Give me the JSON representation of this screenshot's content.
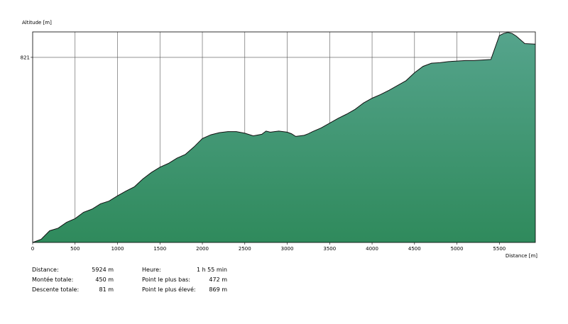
{
  "chart_data": {
    "type": "area",
    "ylabel": "Altitude [m]",
    "xlabel": "Distance [m]",
    "xlim": [
      0,
      5924
    ],
    "ylim": [
      472,
      869
    ],
    "x_ticks": [
      0,
      500,
      1000,
      1500,
      2000,
      2500,
      3000,
      3500,
      4000,
      4500,
      5000,
      5500
    ],
    "y_ticks": [
      821
    ],
    "grid": true,
    "colors": {
      "fill_top": "#55a48c",
      "fill_bottom": "#2f8a5c",
      "line": "#111111",
      "grid": "#555555"
    },
    "x": [
      0,
      100,
      200,
      300,
      400,
      500,
      600,
      700,
      800,
      900,
      1000,
      1100,
      1200,
      1300,
      1400,
      1500,
      1600,
      1700,
      1800,
      1900,
      2000,
      2100,
      2200,
      2300,
      2400,
      2500,
      2600,
      2700,
      2750,
      2800,
      2850,
      2900,
      3000,
      3050,
      3100,
      3200,
      3250,
      3300,
      3400,
      3500,
      3600,
      3700,
      3800,
      3900,
      4000,
      4100,
      4200,
      4300,
      4400,
      4500,
      4600,
      4700,
      4800,
      4900,
      5000,
      5100,
      5200,
      5300,
      5400,
      5500,
      5550,
      5600,
      5650,
      5700,
      5800,
      5924
    ],
    "values": [
      472,
      478,
      494,
      499,
      510,
      517,
      529,
      535,
      545,
      550,
      560,
      569,
      577,
      592,
      604,
      614,
      621,
      631,
      638,
      652,
      668,
      675,
      679,
      681,
      681,
      678,
      673,
      676,
      682,
      680,
      681,
      682,
      680,
      677,
      672,
      674,
      677,
      681,
      688,
      697,
      706,
      714,
      723,
      735,
      744,
      751,
      759,
      768,
      777,
      792,
      804,
      810,
      811,
      813,
      814,
      815,
      815,
      816,
      817,
      862,
      866,
      868,
      866,
      861,
      847,
      846
    ]
  },
  "stats": {
    "left": [
      {
        "label": "Distance:",
        "value": "5924 m"
      },
      {
        "label": "Montée totale:",
        "value": "450 m"
      },
      {
        "label": "Descente totale:",
        "value": "81 m"
      }
    ],
    "right": [
      {
        "label": "Heure:",
        "value": "1 h 55 min"
      },
      {
        "label": "Point le plus bas:",
        "value": "472 m"
      },
      {
        "label": "Point le plus élevé:",
        "value": "869 m"
      }
    ]
  }
}
